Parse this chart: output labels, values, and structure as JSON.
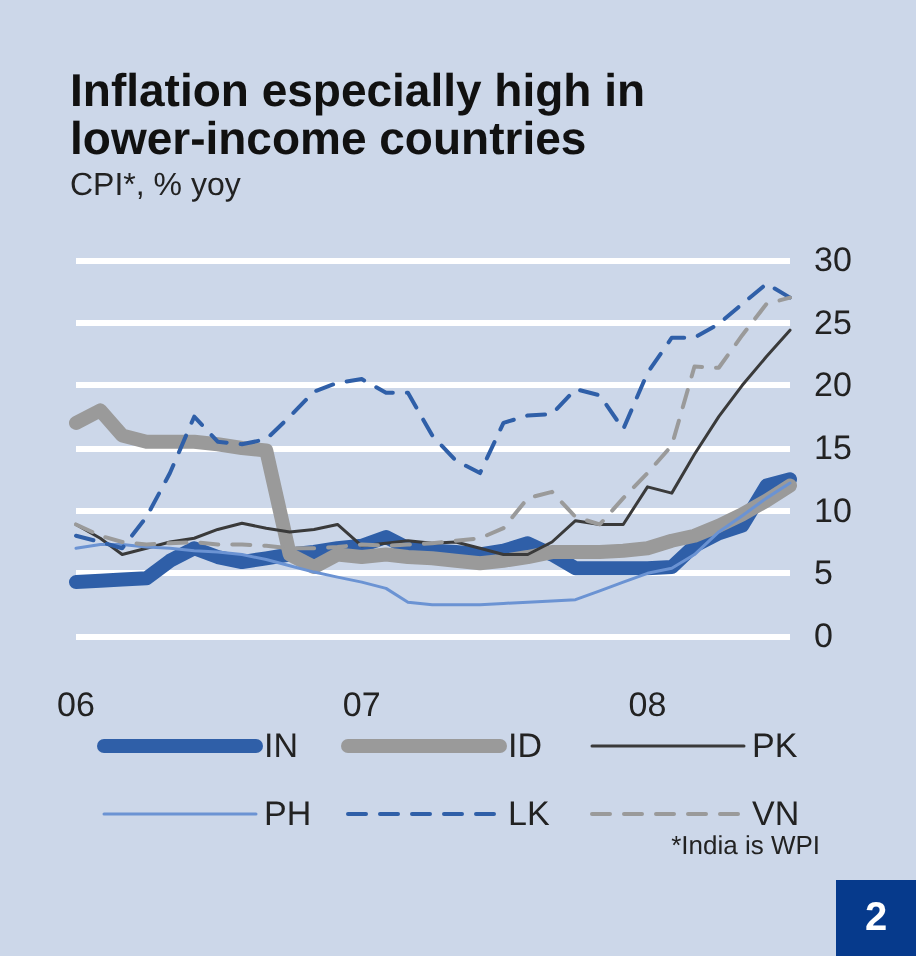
{
  "chart_data": {
    "type": "line",
    "title": "Inflation especially high in lower-income countries",
    "subtitle": "CPI*, % yoy",
    "x": [
      "2006-01",
      "2006-02",
      "2006-03",
      "2006-04",
      "2006-05",
      "2006-06",
      "2006-07",
      "2006-08",
      "2006-09",
      "2006-10",
      "2006-11",
      "2006-12",
      "2007-01",
      "2007-02",
      "2007-03",
      "2007-04",
      "2007-05",
      "2007-06",
      "2007-07",
      "2007-08",
      "2007-09",
      "2007-10",
      "2007-11",
      "2007-12",
      "2008-01",
      "2008-02",
      "2008-03",
      "2008-04",
      "2008-05",
      "2008-06",
      "2008-07"
    ],
    "series": [
      {
        "name": "IN",
        "color": "#2f5fa8",
        "values": [
          4.3,
          4.4,
          4.5,
          4.6,
          6,
          7,
          6.3,
          5.9,
          6.2,
          6.5,
          6.7,
          7,
          7.2,
          7.9,
          7,
          6.8,
          6.7,
          6.5,
          6.8,
          7.4,
          6.5,
          5.4,
          5.4,
          5.4,
          5.4,
          5.5,
          7.2,
          8.2,
          8.8,
          12,
          12.5
        ]
      },
      {
        "name": "ID",
        "color": "#9a9a9a",
        "values": [
          17,
          18,
          16,
          15.5,
          15.5,
          15.5,
          15.3,
          15,
          14.8,
          6.5,
          5.5,
          6.5,
          6.3,
          6.5,
          6.3,
          6.2,
          6,
          5.8,
          6,
          6.3,
          6.7,
          6.7,
          6.7,
          6.8,
          7,
          7.6,
          8,
          8.8,
          9.7,
          10.8,
          12
        ]
      },
      {
        "name": "PK",
        "color": "#3a3a3a",
        "values": [
          8.9,
          7.8,
          6.5,
          7,
          7.5,
          7.8,
          8.5,
          9,
          8.6,
          8.3,
          8.5,
          8.9,
          7.2,
          7.4,
          7.6,
          7.4,
          7.5,
          7,
          6.5,
          6.5,
          7.5,
          9.2,
          8.9,
          8.9,
          11.9,
          11.4,
          14.5,
          17.5,
          20,
          22.3,
          24.4
        ]
      },
      {
        "name": "PH",
        "color": "#6b93d3",
        "values": [
          7,
          7.3,
          7.3,
          7.1,
          7,
          6.8,
          6.7,
          6.5,
          6.1,
          5.6,
          5.1,
          4.7,
          4.3,
          3.8,
          2.7,
          2.5,
          2.5,
          2.5,
          2.6,
          2.7,
          2.8,
          2.9,
          3.6,
          4.3,
          5,
          5.4,
          6.5,
          8.3,
          9.6,
          11,
          12.2
        ]
      },
      {
        "name": "LK",
        "color": "#2f5fa8",
        "line_style": "dashed",
        "values": [
          8,
          7.5,
          7,
          9.5,
          13,
          17.5,
          15.5,
          15.3,
          15.7,
          17.5,
          19.5,
          20.2,
          20.5,
          19.4,
          19.4,
          16,
          14,
          13,
          17,
          17.6,
          17.7,
          19.7,
          19.2,
          16.5,
          21,
          23.8,
          23.8,
          24.9,
          26.5,
          28.1,
          27
        ]
      },
      {
        "name": "VN",
        "color": "#9a9a9a",
        "line_style": "dashed",
        "values": [
          8.9,
          8,
          7.5,
          7.3,
          7.4,
          7.5,
          7.3,
          7.3,
          7.2,
          7,
          7,
          7.1,
          7.3,
          7.2,
          7.3,
          7.4,
          7.6,
          7.8,
          8.6,
          11,
          11.5,
          9.5,
          8.9,
          11,
          13,
          15.2,
          21.5,
          21.4,
          24,
          26.5,
          27
        ]
      }
    ],
    "xlim": [
      "2006-01",
      "2008-07"
    ],
    "xticks": [
      {
        "value": "2006-01",
        "label": "06"
      },
      {
        "value": "2007-01",
        "label": "07"
      },
      {
        "value": "2008-01",
        "label": "08"
      }
    ],
    "ylim": [
      0,
      30
    ],
    "yticks": [
      0,
      5,
      10,
      15,
      20,
      25,
      30
    ],
    "grid": "y",
    "legend": "bottom",
    "marker": "none",
    "line_style": "solid",
    "annotations": [
      "*India is WPI",
      "2"
    ]
  }
}
